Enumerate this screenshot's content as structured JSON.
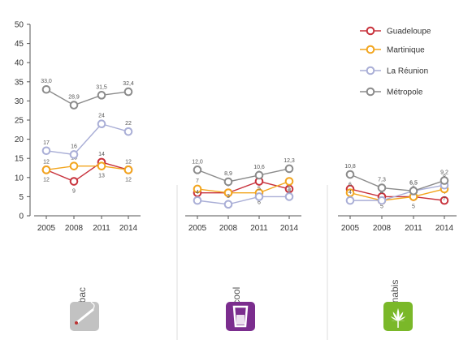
{
  "chart_data": {
    "type": "line",
    "title": "",
    "xlabel": "",
    "ylabel": "",
    "ylim": [
      0,
      50
    ],
    "yticks": [
      0,
      5,
      10,
      15,
      20,
      25,
      30,
      35,
      40,
      45,
      50
    ],
    "grid": false,
    "legend_position": "top-right",
    "legend": [
      "Guadeloupe",
      "Martinique",
      "La Réunion",
      "Métropole"
    ],
    "series_colors": {
      "Guadeloupe": "#c8323c",
      "Martinique": "#f2a51e",
      "La Réunion": "#a9aed6",
      "Métropole": "#8b8b8b"
    },
    "panels": [
      {
        "category": "Tabac",
        "icon": "tabac-cigarette-icon",
        "icon_color": "#c2c2c2",
        "x": [
          "2005",
          "2008",
          "2011",
          "2014"
        ],
        "series": [
          {
            "name": "Guadeloupe",
            "values": [
              12,
              9,
              14,
              12
            ],
            "labels": [
              "12",
              "9",
              "14",
              "12"
            ]
          },
          {
            "name": "Martinique",
            "values": [
              12,
              13,
              13,
              12
            ],
            "labels": [
              "12",
              "13",
              "13",
              "12"
            ]
          },
          {
            "name": "La Réunion",
            "values": [
              17,
              16,
              24,
              22
            ],
            "labels": [
              "17",
              "16",
              "24",
              "22"
            ]
          },
          {
            "name": "Métropole",
            "values": [
              33.0,
              28.9,
              31.5,
              32.4
            ],
            "labels": [
              "33,0",
              "28,9",
              "31,5",
              "32,4"
            ]
          }
        ]
      },
      {
        "category": "Alcool",
        "icon": "alcool-glass-icon",
        "icon_color": "#7b2d8e",
        "x": [
          "2005",
          "2008",
          "2011",
          "2014"
        ],
        "series": [
          {
            "name": "Guadeloupe",
            "values": [
              6,
              6,
              9,
              7
            ],
            "labels": [
              "6",
              "6",
              "9",
              "7"
            ]
          },
          {
            "name": "Martinique",
            "values": [
              7,
              6,
              6,
              9
            ],
            "labels": [
              "7",
              "6",
              "6",
              "9"
            ]
          },
          {
            "name": "La Réunion",
            "values": [
              4,
              3,
              5,
              5
            ],
            "labels": [
              "4",
              "3",
              "5",
              "5"
            ]
          },
          {
            "name": "Métropole",
            "values": [
              12.0,
              8.9,
              10.6,
              12.3
            ],
            "labels": [
              "12,0",
              "8,9",
              "10,6",
              "12,3"
            ]
          }
        ]
      },
      {
        "category": "Cannabis",
        "icon": "cannabis-leaf-icon",
        "icon_color": "#7ab829",
        "x": [
          "2005",
          "2008",
          "2011",
          "2014"
        ],
        "series": [
          {
            "name": "Guadeloupe",
            "values": [
              7,
              5,
              5,
              4
            ],
            "labels": [
              "7",
              "5",
              "5",
              "4"
            ]
          },
          {
            "name": "Martinique",
            "values": [
              6,
              4,
              5,
              7
            ],
            "labels": [
              "6",
              "4",
              "5",
              "7"
            ]
          },
          {
            "name": "La Réunion",
            "values": [
              4,
              4,
              6.5,
              8
            ],
            "labels": [
              "4",
              "4",
              "6,5",
              "8"
            ]
          },
          {
            "name": "Métropole",
            "values": [
              10.8,
              7.3,
              6.5,
              9.2
            ],
            "labels": [
              "10,8",
              "7,3",
              "6,5",
              "9,2"
            ]
          }
        ]
      }
    ]
  }
}
